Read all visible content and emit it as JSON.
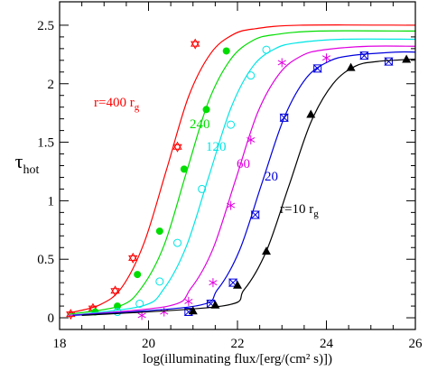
{
  "chart_data": {
    "type": "line",
    "xlabel": "log(illuminating flux/[erg/(cm² s)])",
    "ylabel": "τ",
    "ylabel_sub": "hot",
    "xlim": [
      18,
      26
    ],
    "ylim": [
      -0.1,
      2.7
    ],
    "xticks": [
      18,
      20,
      22,
      24,
      26
    ],
    "yticks": [
      0,
      0.5,
      1,
      1.5,
      2,
      2.5
    ],
    "series": [
      {
        "label": "r=400 r",
        "label_sub": "g",
        "color": "#ff0000",
        "marker": "star",
        "curve_x": [
          18.2,
          18.9,
          19.4,
          19.9,
          20.4,
          20.9,
          21.4,
          21.9,
          22.4,
          23.4,
          26
        ],
        "curve_y": [
          0.04,
          0.11,
          0.26,
          0.64,
          1.26,
          1.89,
          2.26,
          2.42,
          2.47,
          2.5,
          2.5
        ],
        "x": [
          18.25,
          18.75,
          19.25,
          19.65,
          20.65,
          21.05
        ],
        "values": [
          0.03,
          0.08,
          0.23,
          0.51,
          1.46,
          2.34
        ]
      },
      {
        "label": "240",
        "color": "#00dd00",
        "marker": "disc",
        "curve_x": [
          18.2,
          19.35,
          19.85,
          20.35,
          20.85,
          21.35,
          21.85,
          22.35,
          22.85,
          23.85,
          26
        ],
        "curve_y": [
          0.03,
          0.1,
          0.26,
          0.62,
          1.24,
          1.85,
          2.21,
          2.37,
          2.42,
          2.45,
          2.45
        ],
        "x": [
          18.8,
          19.3,
          19.75,
          20.25,
          20.8,
          21.3,
          21.75
        ],
        "values": [
          0.05,
          0.1,
          0.37,
          0.74,
          1.27,
          1.78,
          2.28
        ]
      },
      {
        "label": "120",
        "color": "#00e5e5",
        "marker": "ring",
        "curve_x": [
          18.2,
          19.85,
          20.35,
          20.85,
          21.35,
          21.85,
          22.35,
          22.85,
          23.35,
          24.35,
          26
        ],
        "curve_y": [
          0.02,
          0.1,
          0.25,
          0.61,
          1.2,
          1.79,
          2.15,
          2.3,
          2.35,
          2.38,
          2.38
        ],
        "x": [
          19.3,
          19.8,
          20.25,
          20.65,
          21.2,
          21.85,
          22.3,
          22.65
        ],
        "values": [
          0.05,
          0.12,
          0.31,
          0.64,
          1.1,
          1.65,
          2.07,
          2.29
        ]
      },
      {
        "label": "60",
        "color": "#e000e0",
        "marker": "asterisk",
        "curve_x": [
          18.2,
          20.45,
          20.95,
          21.45,
          21.95,
          22.45,
          22.95,
          23.45,
          23.95,
          24.95,
          26
        ],
        "curve_y": [
          0.02,
          0.1,
          0.25,
          0.59,
          1.17,
          1.75,
          2.09,
          2.24,
          2.29,
          2.32,
          2.32
        ],
        "x": [
          19.85,
          20.35,
          20.9,
          21.45,
          21.85,
          22.3,
          23.0,
          24.0
        ],
        "values": [
          0.02,
          0.05,
          0.14,
          0.3,
          0.96,
          1.52,
          2.18,
          2.22
        ]
      },
      {
        "label": "20",
        "color": "#0000dd",
        "marker": "bowtie",
        "curve_x": [
          18.3,
          21.05,
          21.55,
          22.05,
          22.55,
          23.05,
          23.55,
          24.05,
          24.55,
          25.55,
          26
        ],
        "curve_y": [
          0.02,
          0.1,
          0.24,
          0.58,
          1.15,
          1.71,
          2.05,
          2.19,
          2.24,
          2.27,
          2.27
        ],
        "x": [
          20.9,
          21.4,
          21.9,
          22.4,
          23.05,
          23.8,
          24.85,
          25.4
        ],
        "values": [
          0.05,
          0.12,
          0.3,
          0.88,
          1.71,
          2.13,
          2.24,
          2.19
        ]
      },
      {
        "label": "r=10 r",
        "label_sub": "g",
        "color": "#000000",
        "marker": "triangle",
        "curve_x": [
          18.5,
          21.65,
          22.15,
          22.65,
          23.15,
          23.65,
          24.15,
          24.65,
          25.15,
          26
        ],
        "curve_y": [
          0.02,
          0.1,
          0.24,
          0.57,
          1.12,
          1.67,
          2.0,
          2.15,
          2.19,
          2.21
        ],
        "x": [
          21.0,
          21.5,
          22.0,
          22.65,
          23.65,
          24.55,
          25.8
        ],
        "values": [
          0.06,
          0.11,
          0.28,
          0.57,
          1.74,
          2.14,
          2.21
        ]
      }
    ]
  }
}
